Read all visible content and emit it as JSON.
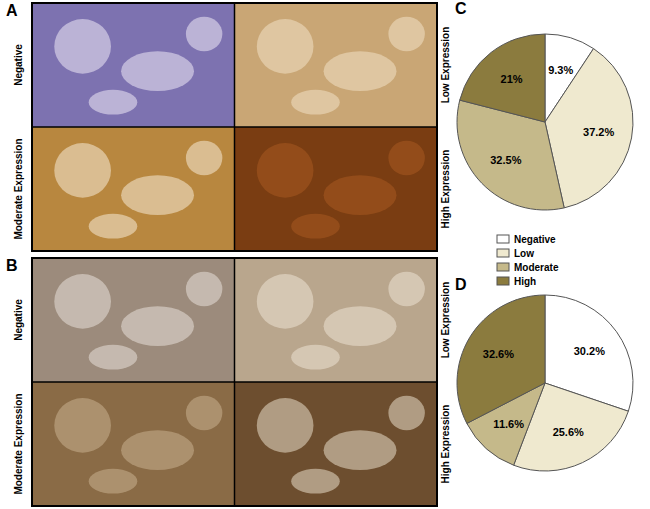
{
  "panels": [
    {
      "label": "A",
      "cells": [
        "Negative",
        "Low Expression",
        "Moderate Expression",
        "High Expression"
      ]
    },
    {
      "label": "B",
      "cells": [
        "Negative",
        "Low Expression",
        "Moderate Expression",
        "High Expression"
      ]
    }
  ],
  "chart_data": [
    {
      "type": "pie",
      "title": "C",
      "categories": [
        "Negative",
        "Low",
        "Moderate",
        "High"
      ],
      "values": [
        9.3,
        37.2,
        32.5,
        21
      ],
      "value_labels": [
        "9.3%",
        "37.2%",
        "32.5%",
        "21%"
      ],
      "colors": [
        "#ffffff",
        "#efe9cf",
        "#c5b98a",
        "#8b7b3e"
      ],
      "data_labels": true,
      "legend": "bottom"
    },
    {
      "type": "pie",
      "title": "D",
      "categories": [
        "Negative",
        "Low",
        "Moderate",
        "High"
      ],
      "values": [
        30.2,
        25.6,
        11.6,
        32.6
      ],
      "value_labels": [
        "30.2%",
        "25.6%",
        "11.6%",
        "32.6%"
      ],
      "colors": [
        "#ffffff",
        "#efe9cf",
        "#c5b98a",
        "#8b7b3e"
      ],
      "data_labels": true
    }
  ]
}
